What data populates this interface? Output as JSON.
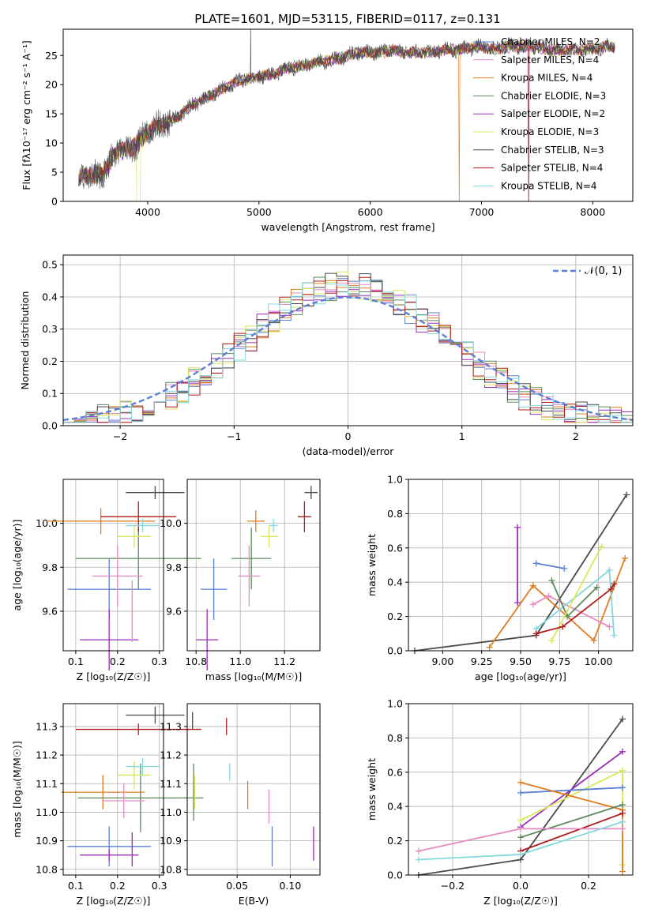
{
  "colors": {
    "blue": "#5a7fd6",
    "orange": "#e07b1e",
    "green": "#5b8a5b",
    "purple": "#9b2cb8",
    "lime": "#d8e85a",
    "grey": "#4a4a4a",
    "red": "#b01c1c",
    "cyan": "#82d8dc",
    "pink": "#e78ac3"
  },
  "chart_data": [
    {
      "type": "line",
      "title": "PLATE=1601, MJD=53115, FIBERID=0117, z=0.131",
      "xlabel": "wavelength [Angstrom, rest frame]",
      "ylabel": "Flux [fλ10⁻¹⁷ erg cm⁻² s⁻¹ A⁻¹]",
      "xlim": [
        3240,
        8360
      ],
      "ylim": [
        0,
        29.5
      ],
      "xticks": [
        "4000",
        "5000",
        "6000",
        "7000",
        "8000"
      ],
      "yticks": [
        "0",
        "5",
        "10",
        "15",
        "20",
        "25"
      ],
      "legend_position": "right",
      "series": [
        {
          "name": "Chabrier MILES, N_SSP=2",
          "color": "#5a7fd6"
        },
        {
          "name": "Salpeter MILES, N_SSP=4",
          "color": "#e78ac3"
        },
        {
          "name": "Kroupa MILES, N_SSP=4",
          "color": "#e07b1e"
        },
        {
          "name": "Chabrier ELODIE, N_SSP=3",
          "color": "#5b8a5b"
        },
        {
          "name": "Salpeter ELODIE, N_SSP=2",
          "color": "#9b2cb8"
        },
        {
          "name": "Kroupa ELODIE, N_SSP=3",
          "color": "#d8e85a"
        },
        {
          "name": "Chabrier STELIB, N_SSP=3",
          "color": "#4a4a4a"
        },
        {
          "name": "Salpeter STELIB, N_SSP=4",
          "color": "#b01c1c"
        },
        {
          "name": "Kroupa STELIB, N_SSP=4",
          "color": "#82d8dc"
        }
      ],
      "continuum": [
        [
          3380,
          4.5
        ],
        [
          3500,
          4.6
        ],
        [
          3600,
          4.8
        ],
        [
          3650,
          6
        ],
        [
          3700,
          8.5
        ],
        [
          3800,
          9
        ],
        [
          3900,
          9.5
        ],
        [
          3950,
          11
        ],
        [
          4000,
          12
        ],
        [
          4100,
          13
        ],
        [
          4200,
          13.5
        ],
        [
          4300,
          15
        ],
        [
          4400,
          16.5
        ],
        [
          4500,
          17.5
        ],
        [
          4600,
          18.5
        ],
        [
          4700,
          19.5
        ],
        [
          4800,
          20.5
        ],
        [
          4900,
          21
        ],
        [
          5000,
          21.5
        ],
        [
          5100,
          21.5
        ],
        [
          5200,
          22.5
        ],
        [
          5300,
          23
        ],
        [
          5400,
          23.2
        ],
        [
          5500,
          23.8
        ],
        [
          5600,
          24
        ],
        [
          5700,
          24.3
        ],
        [
          5800,
          25
        ],
        [
          5900,
          25.5
        ],
        [
          6000,
          25.5
        ],
        [
          6100,
          25.5
        ],
        [
          6200,
          26
        ],
        [
          6300,
          25.5
        ],
        [
          6400,
          25.5
        ],
        [
          6500,
          25.5
        ],
        [
          6600,
          25.7
        ],
        [
          6700,
          26
        ],
        [
          6800,
          26
        ],
        [
          6900,
          26.3
        ],
        [
          7000,
          26.5
        ],
        [
          7100,
          26
        ],
        [
          7200,
          26.5
        ],
        [
          7300,
          26.5
        ],
        [
          7400,
          26.5
        ],
        [
          7500,
          26.5
        ],
        [
          7600,
          26
        ],
        [
          7700,
          25.8
        ],
        [
          7800,
          26
        ],
        [
          7900,
          26
        ],
        [
          8000,
          26
        ],
        [
          8100,
          26.5
        ],
        [
          8200,
          26.5
        ]
      ]
    },
    {
      "type": "histogram",
      "xlabel": "(data-model)/error",
      "ylabel": "Normed distribution",
      "xlim": [
        -2.5,
        2.5
      ],
      "ylim": [
        0,
        0.53
      ],
      "xticks": [
        "−2",
        "−1",
        "0",
        "1",
        "2"
      ],
      "yticks": [
        "0.0",
        "0.1",
        "0.2",
        "0.3",
        "0.4",
        "0.5"
      ],
      "legend": "𝒩(0, 1)",
      "legend_position": "top-right",
      "bin_width": 0.1,
      "bin_start": -2.5
    },
    {
      "type": "scatter",
      "xlabel": "Z [log₁₀(Z/Z☉)]",
      "ylabel": "age  [log₁₀(age/yr)]",
      "xlim": [
        0.07,
        0.31
      ],
      "ylim": [
        9.42,
        10.2
      ],
      "xticks": [
        "0.1",
        "0.2",
        "0.3"
      ],
      "yticks": [
        "9.6",
        "9.8",
        "10.0"
      ],
      "points": [
        {
          "color": "#5a7fd6",
          "x": 0.18,
          "xerr": 0.1,
          "y": 9.7,
          "yerr": 0.14
        },
        {
          "color": "#e07b1e",
          "x": 0.16,
          "xerr": 0.13,
          "y": 10.01,
          "yerr": 0.06
        },
        {
          "color": "#5b8a5b",
          "x": 0.25,
          "xerr": 0.15,
          "y": 9.84,
          "yerr": 0.14
        },
        {
          "color": "#9b2cb8",
          "x": 0.18,
          "xerr": 0.07,
          "y": 9.47,
          "yerr": 0.14
        },
        {
          "color": "#d8e85a",
          "x": 0.24,
          "xerr": 0.04,
          "y": 9.94,
          "yerr": 0.05
        },
        {
          "color": "#4a4a4a",
          "x": 0.29,
          "xerr": 0.07,
          "y": 10.14,
          "yerr": 0.03
        },
        {
          "color": "#b01c1c",
          "x": 0.25,
          "xerr": 0.09,
          "y": 10.03,
          "yerr": 0.07
        },
        {
          "color": "#82d8dc",
          "x": 0.26,
          "xerr": 0.04,
          "y": 9.99,
          "yerr": 0.03
        },
        {
          "color": "#e78ac3",
          "x": 0.2,
          "xerr": 0.06,
          "y": 9.76,
          "yerr": 0.14
        },
        {
          "color": "#e78ac3",
          "x": 0.235,
          "xerr": 0.0,
          "y": 9.6,
          "yerr": 0.14
        }
      ]
    },
    {
      "type": "scatter",
      "xlabel": "mass [log₁₀(M/M☉)]",
      "xlim": [
        10.76,
        11.36
      ],
      "ylim": [
        9.42,
        10.2
      ],
      "xticks": [
        "10.8",
        "11.0",
        "11.2"
      ],
      "yticks": [
        "9.6",
        "9.8",
        "10.0"
      ],
      "points": [
        {
          "color": "#5a7fd6",
          "x": 10.88,
          "xerr": 0.06,
          "y": 9.7,
          "yerr": 0.14
        },
        {
          "color": "#e07b1e",
          "x": 11.07,
          "xerr": 0.04,
          "y": 10.01,
          "yerr": 0.05
        },
        {
          "color": "#5b8a5b",
          "x": 11.05,
          "xerr": 0.09,
          "y": 9.84,
          "yerr": 0.14
        },
        {
          "color": "#9b2cb8",
          "x": 10.85,
          "xerr": 0.05,
          "y": 9.47,
          "yerr": 0.14
        },
        {
          "color": "#d8e85a",
          "x": 11.13,
          "xerr": 0.04,
          "y": 9.94,
          "yerr": 0.05
        },
        {
          "color": "#4a4a4a",
          "x": 11.32,
          "xerr": 0.03,
          "y": 10.14,
          "yerr": 0.03
        },
        {
          "color": "#b01c1c",
          "x": 11.29,
          "xerr": 0.03,
          "y": 10.03,
          "yerr": 0.07
        },
        {
          "color": "#82d8dc",
          "x": 11.15,
          "xerr": 0.02,
          "y": 9.99,
          "yerr": 0.03
        },
        {
          "color": "#e78ac3",
          "x": 11.04,
          "xerr": 0.05,
          "y": 9.76,
          "yerr": 0.14
        }
      ]
    },
    {
      "type": "line",
      "xlabel": "age  [log₁₀(age/yr)]",
      "ylabel": "mass weight",
      "xlim": [
        8.78,
        10.22
      ],
      "ylim": [
        0,
        1
      ],
      "xticks": [
        "9.00",
        "9.25",
        "9.50",
        "9.75",
        "10.00"
      ],
      "yticks": [
        "0.0",
        "0.2",
        "0.4",
        "0.6",
        "0.8",
        "1.0"
      ],
      "series": [
        {
          "color": "#4a4a4a",
          "points": [
            [
              8.82,
              0.0
            ],
            [
              9.6,
              0.09
            ],
            [
              10.18,
              0.91
            ]
          ]
        },
        {
          "color": "#e07b1e",
          "points": [
            [
              9.3,
              0.02
            ],
            [
              9.58,
              0.38
            ],
            [
              9.97,
              0.06
            ],
            [
              10.17,
              0.54
            ]
          ]
        },
        {
          "color": "#9b2cb8",
          "points": [
            [
              9.48,
              0.28
            ],
            [
              9.48,
              0.72
            ]
          ]
        },
        {
          "color": "#5a7fd6",
          "points": [
            [
              9.6,
              0.51
            ],
            [
              9.78,
              0.48
            ]
          ]
        },
        {
          "color": "#e78ac3",
          "points": [
            [
              9.58,
              0.27
            ],
            [
              9.68,
              0.32
            ],
            [
              10.07,
              0.14
            ]
          ]
        },
        {
          "color": "#82d8dc",
          "points": [
            [
              9.6,
              0.13
            ],
            [
              10.07,
              0.47
            ],
            [
              10.1,
              0.09
            ]
          ]
        },
        {
          "color": "#5b8a5b",
          "points": [
            [
              9.7,
              0.41
            ],
            [
              9.8,
              0.2
            ],
            [
              9.99,
              0.37
            ]
          ]
        },
        {
          "color": "#d8e85a",
          "points": [
            [
              9.7,
              0.06
            ],
            [
              10.02,
              0.61
            ]
          ]
        },
        {
          "color": "#b01c1c",
          "points": [
            [
              9.6,
              0.1
            ],
            [
              9.77,
              0.14
            ],
            [
              10.08,
              0.36
            ],
            [
              10.1,
              0.39
            ]
          ]
        }
      ]
    },
    {
      "type": "scatter",
      "xlabel": "Z [log₁₀(Z/Z☉)]",
      "ylabel": "mass [log₁₀(M/M☉)]",
      "xlim": [
        0.07,
        0.31
      ],
      "ylim": [
        10.78,
        11.38
      ],
      "xticks": [
        "0.1",
        "0.2",
        "0.3"
      ],
      "yticks": [
        "10.8",
        "10.9",
        "11.0",
        "11.1",
        "11.2",
        "11.3"
      ],
      "points": [
        {
          "color": "#5a7fd6",
          "x": 0.18,
          "xerr": 0.1,
          "y": 10.88,
          "yerr": 0.07
        },
        {
          "color": "#e07b1e",
          "x": 0.165,
          "xerr": 0.1,
          "y": 11.07,
          "yerr": 0.06
        },
        {
          "color": "#5b8a5b",
          "x": 0.255,
          "xerr": 0.15,
          "y": 11.05,
          "yerr": 0.12
        },
        {
          "color": "#9b2cb8",
          "x": 0.18,
          "xerr": 0.07,
          "y": 10.85,
          "yerr": 0.02
        },
        {
          "color": "#d8e85a",
          "x": 0.24,
          "xerr": 0.04,
          "y": 11.13,
          "yerr": 0.05
        },
        {
          "color": "#4a4a4a",
          "x": 0.29,
          "xerr": 0.07,
          "y": 11.34,
          "yerr": 0.03
        },
        {
          "color": "#b01c1c",
          "x": 0.25,
          "xerr": 0.15,
          "y": 11.29,
          "yerr": 0.02
        },
        {
          "color": "#82d8dc",
          "x": 0.26,
          "xerr": 0.04,
          "y": 11.16,
          "yerr": 0.03
        },
        {
          "color": "#e78ac3",
          "x": 0.215,
          "xerr": 0.05,
          "y": 11.04,
          "yerr": 0.06
        },
        {
          "color": "#9b2cb8",
          "x": 0.235,
          "xerr": 0.0,
          "y": 10.87,
          "yerr": 0.06
        }
      ]
    },
    {
      "type": "scatter",
      "xlabel": "E(B-V)",
      "xlim": [
        0.003,
        0.128
      ],
      "ylim": [
        10.78,
        11.38
      ],
      "xticks": [
        "0.05",
        "0.10"
      ],
      "yticks": [
        "10.8",
        "10.9",
        "11.0",
        "11.1",
        "11.2",
        "11.3"
      ],
      "points": [
        {
          "color": "#4a4a4a",
          "x": 0.008,
          "y": 11.32,
          "yerr": 0.03
        },
        {
          "color": "#5b8a5b",
          "x": 0.009,
          "y": 11.07,
          "yerr": 0.1
        },
        {
          "color": "#d8e85a",
          "x": 0.01,
          "y": 11.07,
          "yerr": 0.06
        },
        {
          "color": "#b01c1c",
          "x": 0.04,
          "y": 11.3,
          "yerr": 0.03
        },
        {
          "color": "#82d8dc",
          "x": 0.043,
          "y": 11.14,
          "yerr": 0.03
        },
        {
          "color": "#e07b1e",
          "x": 0.06,
          "y": 11.06,
          "yerr": 0.05
        },
        {
          "color": "#e78ac3",
          "x": 0.08,
          "y": 11.02,
          "yerr": 0.06
        },
        {
          "color": "#5a7fd6",
          "x": 0.083,
          "y": 10.88,
          "yerr": 0.07
        },
        {
          "color": "#9b2cb8",
          "x": 0.122,
          "y": 10.89,
          "yerr": 0.06
        }
      ]
    },
    {
      "type": "line",
      "xlabel": "Z [log₁₀(Z/Z☉)]",
      "ylabel": "mass weight",
      "xlim": [
        -0.33,
        0.33
      ],
      "ylim": [
        0,
        1
      ],
      "xticks": [
        "−0.2",
        "0.0",
        "0.2"
      ],
      "yticks": [
        "0.0",
        "0.2",
        "0.4",
        "0.6",
        "0.8",
        "1.0"
      ],
      "series": [
        {
          "color": "#4a4a4a",
          "points": [
            [
              -0.3,
              0.0
            ],
            [
              0.0,
              0.09
            ],
            [
              0.3,
              0.91
            ]
          ]
        },
        {
          "color": "#9b2cb8",
          "points": [
            [
              0.0,
              0.28
            ],
            [
              0.3,
              0.72
            ]
          ]
        },
        {
          "color": "#d8e85a",
          "points": [
            [
              0.0,
              0.32
            ],
            [
              0.3,
              0.61
            ],
            [
              0.3,
              0.06
            ]
          ]
        },
        {
          "color": "#5a7fd6",
          "points": [
            [
              0.0,
              0.48
            ],
            [
              0.3,
              0.51
            ]
          ]
        },
        {
          "color": "#e07b1e",
          "points": [
            [
              0.0,
              0.54
            ],
            [
              0.3,
              0.38
            ],
            [
              0.3,
              0.02
            ]
          ]
        },
        {
          "color": "#5b8a5b",
          "points": [
            [
              0.0,
              0.22
            ],
            [
              0.3,
              0.41
            ]
          ]
        },
        {
          "color": "#b01c1c",
          "points": [
            [
              0.0,
              0.14
            ],
            [
              0.3,
              0.36
            ]
          ]
        },
        {
          "color": "#e78ac3",
          "points": [
            [
              -0.3,
              0.14
            ],
            [
              0.0,
              0.27
            ],
            [
              0.3,
              0.27
            ]
          ]
        },
        {
          "color": "#82d8dc",
          "points": [
            [
              -0.3,
              0.09
            ],
            [
              0.0,
              0.12
            ],
            [
              0.3,
              0.31
            ]
          ]
        }
      ]
    }
  ]
}
